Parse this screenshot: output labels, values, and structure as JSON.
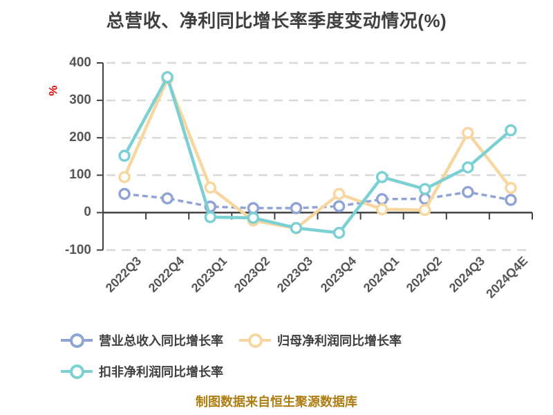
{
  "title": "总营收、净利同比增长率季度变动情况(%)",
  "ylabel": "%",
  "footer": "制图数据来自恒生聚源数据库",
  "colors": {
    "title": "#3f3f3f",
    "tick": "#555555",
    "axis": "#404040",
    "grid": "#d9d9d9",
    "unit": "#e60000",
    "footer": "#ad7d12",
    "marker_fill": "#ffffff"
  },
  "chart_data": {
    "type": "line",
    "categories": [
      "2022Q3",
      "2022Q4",
      "2023Q1",
      "2023Q2",
      "2023Q3",
      "2023Q4",
      "2024Q1",
      "2024Q2",
      "2024Q3",
      "2024Q4E"
    ],
    "series": [
      {
        "name": "营业总收入同比增长率",
        "color": "#8FA3D4",
        "style": "dashed",
        "values": [
          50,
          38,
          16,
          12,
          12,
          17,
          36,
          37,
          55,
          34
        ]
      },
      {
        "name": "归母净利润同比增长率",
        "color": "#F8D6A0",
        "style": "solid",
        "values": [
          95,
          357,
          67,
          -21,
          -42,
          50,
          9,
          7,
          213,
          66
        ]
      },
      {
        "name": "扣非净利润同比增长率",
        "color": "#7AD0D2",
        "style": "solid",
        "values": [
          152,
          362,
          -12,
          -14,
          -41,
          -54,
          95,
          63,
          121,
          220
        ]
      }
    ],
    "ylim": [
      -100,
      400
    ],
    "yticks": [
      400,
      300,
      200,
      100,
      0,
      -100
    ],
    "grid": "dashed-horizontal",
    "legend_position": "bottom-left",
    "marker": "circle-white-fill"
  }
}
